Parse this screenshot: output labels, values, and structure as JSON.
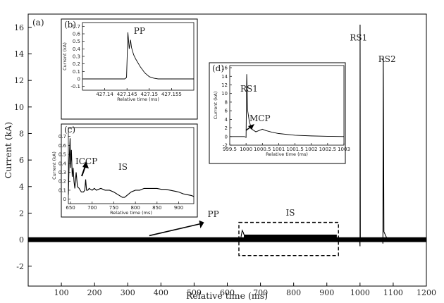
{
  "chart_data": [
    {
      "type": "line",
      "panel_label": "(a)",
      "xlabel": "Relative time (ms)",
      "ylabel": "Current (kA)",
      "xlim": [
        0,
        1200
      ],
      "ylim": [
        -3.5,
        17
      ],
      "xticks": [
        100,
        200,
        300,
        400,
        500,
        600,
        700,
        800,
        900,
        1000,
        1100,
        1200
      ],
      "yticks": [
        -2,
        0,
        2,
        4,
        6,
        8,
        10,
        12,
        14,
        16
      ],
      "grid": false,
      "series": [
        {
          "x": [
            0,
            100,
            200,
            300,
            400,
            500,
            540,
            560,
            600,
            640,
            645,
            648,
            650,
            655,
            660,
            670,
            700,
            750,
            800,
            850,
            900,
            930,
            950,
            999,
            1000,
            1000.2,
            1001,
            1010,
            1050,
            1068,
            1069,
            1070,
            1072,
            1080,
            1100,
            1150,
            1200
          ],
          "y": [
            0,
            0,
            0,
            0,
            0,
            0,
            0,
            0,
            0,
            0,
            0.7,
            0.55,
            0.4,
            0.25,
            0.2,
            0.15,
            0.12,
            0.1,
            0.12,
            0.12,
            0.1,
            0.05,
            0,
            0,
            -0.5,
            16.2,
            0.1,
            0,
            0,
            0,
            -0.3,
            13.8,
            0.6,
            0.15,
            0.05,
            0,
            0
          ]
        }
      ],
      "annotations": [
        {
          "text": "PP",
          "x": 545,
          "y": 1.7
        },
        {
          "text": "IS",
          "x": 790,
          "y": 1.8
        },
        {
          "text": "RS1",
          "x": 1000,
          "y": 15
        },
        {
          "text": "RS2",
          "x": 1075,
          "y": 13.4
        }
      ],
      "dashed_box": {
        "x": [
          635,
          935
        ],
        "y": [
          -1.2,
          1.3
        ]
      }
    },
    {
      "type": "line",
      "panel_label": "(b)",
      "xlabel": "Relative time (ms)",
      "ylabel": "Current (kA)",
      "xlim": [
        427.135,
        427.16
      ],
      "ylim": [
        -0.15,
        0.75
      ],
      "xticks": [
        427.14,
        427.145,
        427.15,
        427.155
      ],
      "yticks": [
        -0.1,
        0,
        0.1,
        0.2,
        0.3,
        0.4,
        0.5,
        0.6,
        0.7
      ],
      "series": [
        {
          "x": [
            427.135,
            427.14,
            427.1445,
            427.1449,
            427.1452,
            427.1455,
            427.1458,
            427.146,
            427.1465,
            427.147,
            427.148,
            427.149,
            427.15,
            427.151,
            427.152,
            427.155,
            427.16
          ],
          "y": [
            0,
            0,
            0,
            0.02,
            0.62,
            0.4,
            0.52,
            0.42,
            0.32,
            0.26,
            0.16,
            0.08,
            0.03,
            0.01,
            0,
            0,
            0
          ]
        }
      ],
      "annotations": [
        {
          "text": "PP",
          "x": 427.1462,
          "y": 0.62
        }
      ]
    },
    {
      "type": "line",
      "panel_label": "(c)",
      "xlabel": "Relative time (ms)",
      "ylabel": "Current (kA)",
      "xlim": [
        645,
        935
      ],
      "ylim": [
        -0.05,
        0.8
      ],
      "xticks": [
        650,
        700,
        750,
        800,
        850,
        900
      ],
      "yticks": [
        0,
        0.1,
        0.2,
        0.3,
        0.4,
        0.5,
        0.6,
        0.7
      ],
      "series": [
        {
          "x": [
            645,
            647,
            649,
            650,
            652,
            654,
            656,
            658,
            660,
            663,
            666,
            670,
            675,
            680,
            683,
            685,
            687,
            690,
            693,
            700,
            705,
            710,
            720,
            730,
            740,
            750,
            760,
            770,
            775,
            780,
            790,
            800,
            810,
            820,
            830,
            840,
            850,
            860,
            870,
            880,
            890,
            900,
            910,
            920,
            930,
            935
          ],
          "y": [
            0.05,
            0.45,
            0.68,
            0.35,
            0.55,
            0.25,
            0.35,
            0.2,
            0.12,
            0.3,
            0.14,
            0.12,
            0.08,
            0.08,
            0.1,
            0.22,
            0.1,
            0.1,
            0.12,
            0.1,
            0.12,
            0.1,
            0.12,
            0.1,
            0.1,
            0.08,
            0.05,
            0.02,
            0.02,
            0.04,
            0.08,
            0.1,
            0.1,
            0.12,
            0.12,
            0.12,
            0.12,
            0.11,
            0.11,
            0.1,
            0.09,
            0.08,
            0.06,
            0.05,
            0.04,
            0.03
          ]
        }
      ],
      "annotations": [
        {
          "text": "ICCP",
          "x": 690,
          "y": 0.35
        },
        {
          "text": "IS",
          "x": 750,
          "y": 0.4
        }
      ]
    },
    {
      "type": "line",
      "panel_label": "(d)",
      "xlabel": "Relative time (ms)",
      "ylabel": "Current (kA)",
      "xlim": [
        999.5,
        1003
      ],
      "ylim": [
        -2,
        16.5
      ],
      "xticks": [
        999.5,
        1000,
        1000.5,
        1001,
        1001.5,
        1002,
        1002.5,
        1003
      ],
      "yticks": [
        -2,
        0,
        2,
        4,
        6,
        8,
        10,
        12,
        14,
        16
      ],
      "series": [
        {
          "x": [
            999.5,
            999.95,
            1000.0,
            1000.02,
            1000.05,
            1000.1,
            1000.15,
            1000.2,
            1000.3,
            1000.4,
            1000.5,
            1000.6,
            1000.8,
            1001,
            1001.5,
            1002,
            1002.5,
            1003
          ],
          "y": [
            0,
            0,
            -0.2,
            14.5,
            6,
            3.5,
            2.2,
            1.6,
            1.1,
            1.4,
            1.7,
            1.4,
            1.0,
            0.7,
            0.3,
            0.15,
            0.05,
            0
          ]
        }
      ],
      "annotations": [
        {
          "text": "RS1",
          "x": 1000.2,
          "y": 10
        },
        {
          "text": "MCP",
          "x": 1000.8,
          "y": 4.5
        }
      ]
    }
  ]
}
